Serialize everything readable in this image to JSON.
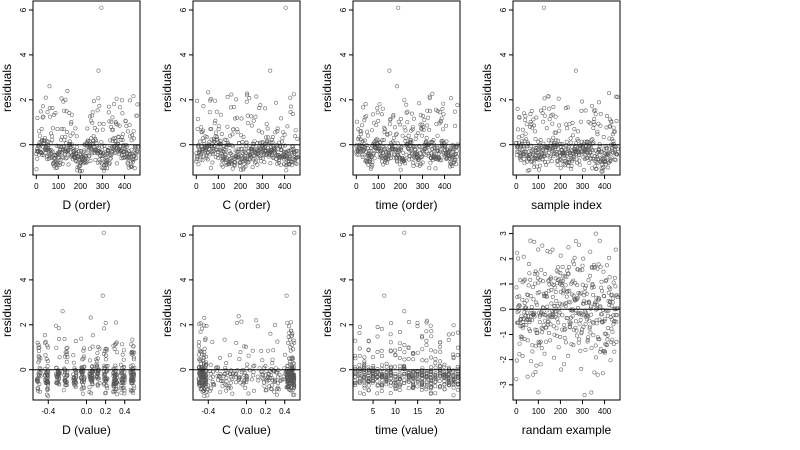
{
  "colors": {
    "points": "#555555",
    "frame": "#000000",
    "refline": "#000000",
    "background": "#ffffff"
  },
  "chart_data": [
    {
      "type": "scatter",
      "xlabel": "D (order)",
      "ylabel": "residuals",
      "xlim": [
        -15,
        470
      ],
      "ylim": [
        -1.35,
        6.4
      ],
      "xticks": [
        0,
        100,
        200,
        300,
        400
      ],
      "yticks": [
        0,
        2,
        4,
        6
      ],
      "hline": 0,
      "grid": false,
      "n_points": 460,
      "max_outlier": [
        295,
        6.1
      ],
      "extra_outliers": [
        [
          282,
          3.3
        ],
        [
          60,
          2.6
        ]
      ],
      "pattern": "sawtooth"
    },
    {
      "type": "scatter",
      "xlabel": "C (order)",
      "ylabel": "residuals",
      "xlim": [
        -15,
        470
      ],
      "ylim": [
        -1.35,
        6.4
      ],
      "xticks": [
        0,
        100,
        200,
        300,
        400
      ],
      "yticks": [
        0,
        2,
        4,
        6
      ],
      "hline": 0,
      "grid": false,
      "n_points": 460,
      "max_outlier": [
        405,
        6.1
      ],
      "extra_outliers": [
        [
          335,
          3.3
        ],
        [
          230,
          2.2
        ]
      ],
      "pattern": "smooth"
    },
    {
      "type": "scatter",
      "xlabel": "time (order)",
      "ylabel": "residuals",
      "xlim": [
        -15,
        470
      ],
      "ylim": [
        -1.35,
        6.4
      ],
      "xticks": [
        0,
        100,
        200,
        300,
        400
      ],
      "yticks": [
        0,
        2,
        4,
        6
      ],
      "hline": 0,
      "grid": false,
      "n_points": 460,
      "max_outlier": [
        190,
        6.1
      ],
      "extra_outliers": [
        [
          150,
          3.3
        ],
        [
          185,
          2.6
        ]
      ],
      "pattern": "periodic"
    },
    {
      "type": "scatter",
      "xlabel": "sample index",
      "ylabel": "residuals",
      "xlim": [
        -15,
        470
      ],
      "ylim": [
        -1.35,
        6.4
      ],
      "xticks": [
        0,
        100,
        200,
        300,
        400
      ],
      "yticks": [
        0,
        2,
        4,
        6
      ],
      "hline": 0,
      "grid": false,
      "n_points": 460,
      "max_outlier": [
        125,
        6.1
      ],
      "extra_outliers": [
        [
          270,
          3.3
        ],
        [
          420,
          2.3
        ]
      ],
      "pattern": "wave"
    },
    {
      "type": "scatter",
      "xlabel": "D (value)",
      "ylabel": "residuals",
      "xlim": [
        -0.56,
        0.56
      ],
      "ylim": [
        -1.35,
        6.4
      ],
      "xticks": [
        -0.4,
        0.0,
        0.2,
        0.4
      ],
      "xticklabels": [
        "-0.4",
        "0.0",
        "0.2",
        "0.4"
      ],
      "yticks": [
        0,
        2,
        4,
        6
      ],
      "hline": 0,
      "grid": false,
      "n_points": 460,
      "max_outlier": [
        0.18,
        6.1
      ],
      "extra_outliers": [
        [
          0.17,
          3.3
        ],
        [
          -0.25,
          2.6
        ]
      ],
      "pattern": "columns"
    },
    {
      "type": "scatter",
      "xlabel": "C (value)",
      "ylabel": "residuals",
      "xlim": [
        -0.56,
        0.56
      ],
      "ylim": [
        -1.35,
        6.4
      ],
      "xticks": [
        -0.4,
        0.0,
        0.2,
        0.4
      ],
      "xticklabels": [
        "-0.4",
        "0.0",
        "0.2",
        "0.4"
      ],
      "yticks": [
        0,
        2,
        4,
        6
      ],
      "hline": 0,
      "grid": false,
      "n_points": 460,
      "max_outlier": [
        0.5,
        6.1
      ],
      "extra_outliers": [
        [
          0.42,
          3.3
        ],
        [
          0.1,
          2.2
        ]
      ],
      "pattern": "edges"
    },
    {
      "type": "scatter",
      "xlabel": "time (value)",
      "ylabel": "residuals",
      "xlim": [
        0.5,
        24.5
      ],
      "ylim": [
        -1.35,
        6.4
      ],
      "xticks": [
        5,
        10,
        15,
        20
      ],
      "yticks": [
        0,
        2,
        4,
        6
      ],
      "hline": 0,
      "grid": false,
      "n_points": 460,
      "max_outlier": [
        12,
        6.1
      ],
      "extra_outliers": [
        [
          7.5,
          3.3
        ],
        [
          12,
          2.6
        ]
      ],
      "pattern": "hourly"
    },
    {
      "type": "scatter",
      "xlabel": "randam example",
      "ylabel": "residuals",
      "xlim": [
        -15,
        470
      ],
      "ylim": [
        -3.6,
        3.3
      ],
      "xticks": [
        0,
        100,
        200,
        300,
        400
      ],
      "yticks": [
        -3,
        -2,
        -1,
        0,
        1,
        2,
        3
      ],
      "hline": 0,
      "grid": false,
      "n_points": 460,
      "max_outlier": [
        360,
        3.0
      ],
      "extra_outliers": [
        [
          100,
          -3.3
        ],
        [
          270,
          2.7
        ]
      ],
      "pattern": "random"
    }
  ]
}
